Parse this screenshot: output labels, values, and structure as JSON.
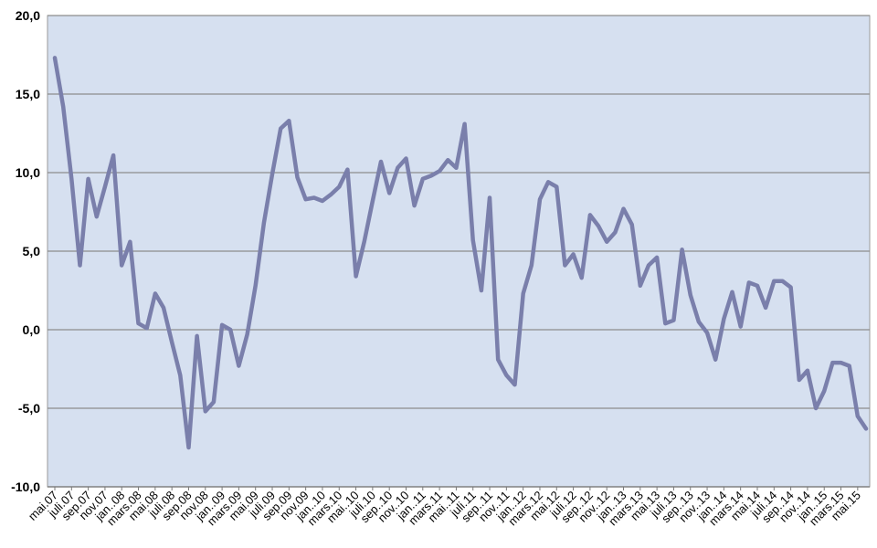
{
  "chart_data": {
    "type": "line",
    "title": "",
    "xlabel": "",
    "ylabel": "",
    "ylim": [
      -10,
      20
    ],
    "yticks": [
      "20,0",
      "15,0",
      "10,0",
      "5,0",
      "0,0",
      "-5,0",
      "-10,0"
    ],
    "ytick_values": [
      20,
      15,
      10,
      5,
      0,
      -5,
      -10
    ],
    "grid": true,
    "legend": "none",
    "colors": {
      "plot_background": "#d6e0f0",
      "line": "#7a7fab",
      "gridline": "#8c8c8c"
    },
    "x_tick_labels": [
      "mai.07",
      "juli.07",
      "sep.07",
      "nov.07",
      "jan..08",
      "mars.08",
      "mai.08",
      "juli.08",
      "sep.08",
      "nov.08",
      "jan..09",
      "mars.09",
      "mai.09",
      "juli.09",
      "sep.09",
      "nov.09",
      "jan..10",
      "mars.10",
      "mai..10",
      "juli.10",
      "sep..10",
      "nov..10",
      "jan..11",
      "mars.11",
      "mai..11",
      "juli.11",
      "sep..11",
      "nov..11",
      "jan..12",
      "mars.12",
      "mai.12",
      "juli.12",
      "sep..12",
      "nov..12",
      "jan..13",
      "mars.13",
      "mai.13",
      "juli.13",
      "sep..13",
      "nov..13",
      "jan..14",
      "mars.14",
      "mai.14",
      "juli.14",
      "sep..14",
      "nov..14",
      "jan..15",
      "mars.15",
      "mai.15"
    ],
    "series": [
      {
        "values": [
          17.3,
          14.2,
          9.6,
          4.1,
          9.6,
          7.2,
          9.1,
          11.1,
          4.1,
          5.6,
          0.4,
          0.1,
          2.3,
          1.4,
          -0.8,
          -2.9,
          -7.5,
          -0.4,
          -5.2,
          -4.6,
          0.3,
          0.0,
          -2.3,
          -0.3,
          2.8,
          6.8,
          9.9,
          12.8,
          13.3,
          9.7,
          8.3,
          8.4,
          8.2,
          8.6,
          9.1,
          10.2,
          3.4,
          5.6,
          8.2,
          10.7,
          8.7,
          10.3,
          10.9,
          7.9,
          9.6,
          9.8,
          10.1,
          10.8,
          10.3,
          13.1,
          5.7,
          2.5,
          8.4,
          -1.9,
          -2.9,
          -3.5,
          2.3,
          4.1,
          8.3,
          9.4,
          9.1,
          4.1,
          4.8,
          3.3,
          7.3,
          6.6,
          5.6,
          6.2,
          7.7,
          6.7,
          2.8,
          4.1,
          4.6,
          0.4,
          0.6,
          5.1,
          2.2,
          0.5,
          -0.2,
          -1.9,
          0.7,
          2.4,
          0.2,
          3.0,
          2.8,
          1.4,
          3.1,
          3.1,
          2.7,
          -3.2,
          -2.6,
          -5.0,
          -3.9,
          -2.1,
          -2.1,
          -2.3,
          -5.5,
          -6.3
        ]
      }
    ]
  }
}
